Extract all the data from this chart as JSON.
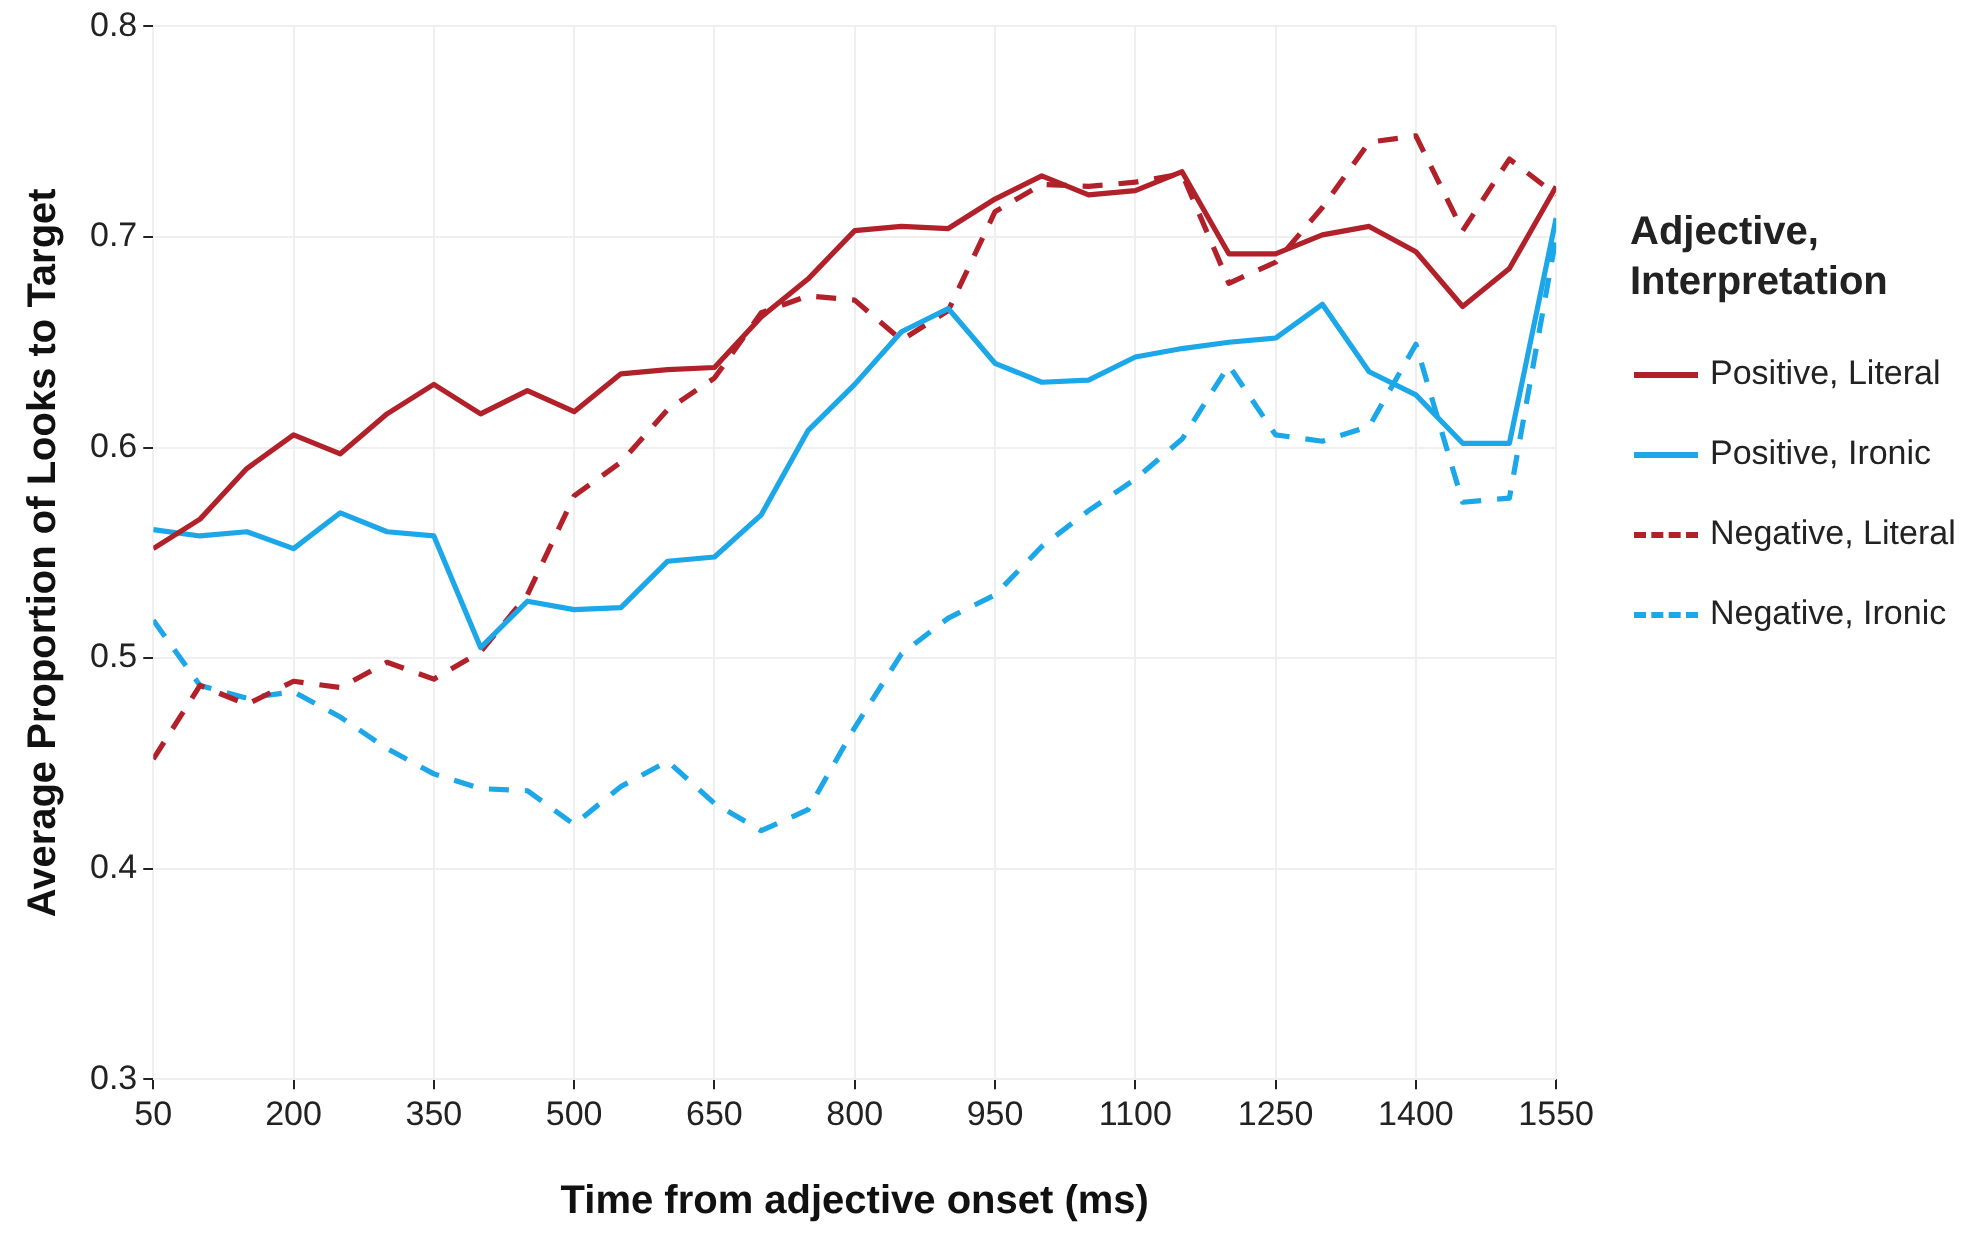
{
  "chart_data": {
    "type": "line",
    "xlabel": "Time from adjective onset (ms)",
    "ylabel": "Average Proportion of Looks to Target",
    "legend_title": "Adjective, Interpretation",
    "x": [
      50,
      100,
      150,
      200,
      250,
      300,
      350,
      400,
      450,
      500,
      550,
      600,
      650,
      700,
      750,
      800,
      850,
      900,
      950,
      1000,
      1050,
      1100,
      1150,
      1200,
      1250,
      1300,
      1350,
      1400,
      1450,
      1500,
      1550
    ],
    "xlim": [
      50,
      1550
    ],
    "xticks": [
      50,
      200,
      350,
      500,
      650,
      800,
      950,
      1100,
      1250,
      1400,
      1550
    ],
    "ylim": [
      0.3,
      0.8
    ],
    "yticks": [
      0.3,
      0.4,
      0.5,
      0.6,
      0.7,
      0.8
    ],
    "grid": true,
    "legend": "right",
    "marker": "none",
    "series": [
      {
        "name": "Positive, Literal",
        "color": "#b2202a",
        "line_style": "solid",
        "values": [
          0.552,
          0.566,
          0.59,
          0.606,
          0.597,
          0.616,
          0.63,
          0.616,
          0.627,
          0.617,
          0.635,
          0.637,
          0.638,
          0.662,
          0.68,
          0.703,
          0.705,
          0.704,
          0.718,
          0.729,
          0.72,
          0.722,
          0.731,
          0.692,
          0.692,
          0.701,
          0.705,
          0.693,
          0.667,
          0.685,
          0.724
        ]
      },
      {
        "name": "Positive, Ironic",
        "color": "#1ba7e8",
        "line_style": "solid",
        "values": [
          0.561,
          0.558,
          0.56,
          0.552,
          0.569,
          0.56,
          0.558,
          0.505,
          0.527,
          0.523,
          0.524,
          0.546,
          0.548,
          0.568,
          0.608,
          0.63,
          0.655,
          0.666,
          0.64,
          0.631,
          0.632,
          0.643,
          0.647,
          0.65,
          0.652,
          0.668,
          0.636,
          0.625,
          0.602,
          0.602,
          0.709
        ]
      },
      {
        "name": "Negative, Literal",
        "color": "#b2202a",
        "line_style": "dashed",
        "values": [
          0.452,
          0.487,
          0.478,
          0.489,
          0.486,
          0.498,
          0.49,
          0.503,
          0.53,
          0.577,
          0.593,
          0.618,
          0.633,
          0.664,
          0.672,
          0.67,
          0.651,
          0.665,
          0.712,
          0.725,
          0.724,
          0.726,
          0.73,
          0.678,
          0.688,
          0.714,
          0.745,
          0.748,
          0.703,
          0.737,
          0.72
        ]
      },
      {
        "name": "Negative, Ironic",
        "color": "#1ba7e8",
        "line_style": "dashed",
        "values": [
          0.518,
          0.487,
          0.481,
          0.484,
          0.472,
          0.457,
          0.445,
          0.438,
          0.437,
          0.421,
          0.439,
          0.451,
          0.431,
          0.418,
          0.428,
          0.467,
          0.502,
          0.519,
          0.53,
          0.553,
          0.57,
          0.585,
          0.604,
          0.639,
          0.606,
          0.603,
          0.61,
          0.649,
          0.574,
          0.576,
          0.7
        ]
      }
    ]
  }
}
